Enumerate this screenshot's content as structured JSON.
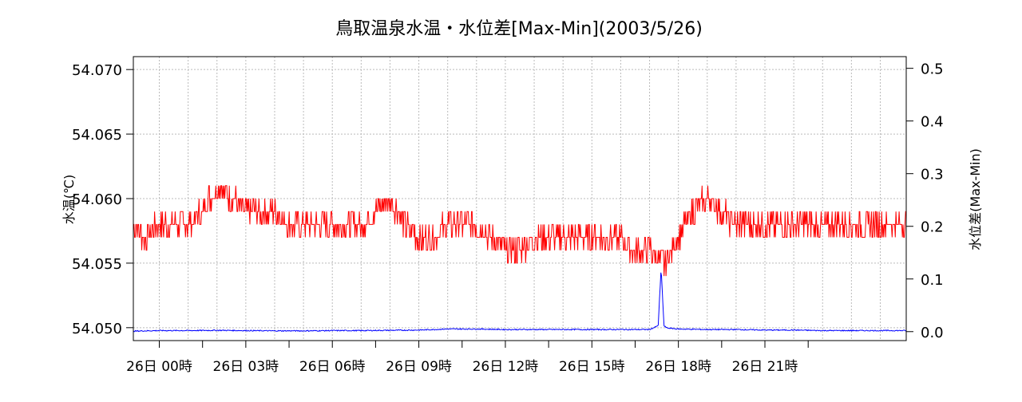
{
  "chart_data": {
    "type": "line",
    "title": "鳥取温泉水温・水位差[Max-Min](2003/5/26)",
    "ylabel_left": "水温(℃)",
    "ylabel_right": "水位差(Max-Min)",
    "ylim_left": [
      54.049,
      54.071
    ],
    "ylim_right": [
      -0.017,
      0.5222
    ],
    "yticks_left": [
      "54.050",
      "54.055",
      "54.060",
      "54.065",
      "54.070"
    ],
    "yticks_left_values": [
      54.05,
      54.055,
      54.06,
      54.065,
      54.07
    ],
    "yticks_right": [
      "0.0",
      "0.1",
      "0.2",
      "0.3",
      "0.4",
      "0.5"
    ],
    "yticks_right_values": [
      0.0,
      0.1,
      0.2,
      0.3,
      0.4,
      0.5
    ],
    "xlim": [
      -0.9,
      25.9
    ],
    "xticks": [
      {
        "x": 0,
        "label": "26日 00時"
      },
      {
        "x": 3,
        "label": "26日 03時"
      },
      {
        "x": 6,
        "label": "26日 06時"
      },
      {
        "x": 9,
        "label": "26日 09時"
      },
      {
        "x": 12,
        "label": "26日 12時"
      },
      {
        "x": 15,
        "label": "26日 15時"
      },
      {
        "x": 18,
        "label": "26日 18時"
      },
      {
        "x": 21,
        "label": "26日 21時"
      }
    ],
    "grid": true,
    "series": [
      {
        "axis": "left",
        "color": "#ff0000",
        "x": [
          -0.9,
          -0.5,
          0,
          0.5,
          1,
          1.5,
          2,
          2.5,
          3,
          3.5,
          4,
          4.5,
          5,
          5.5,
          6,
          6.5,
          7,
          7.5,
          8,
          8.5,
          9,
          9.5,
          10,
          10.5,
          11,
          11.5,
          12,
          12.5,
          13,
          13.5,
          14,
          14.5,
          15,
          15.5,
          16,
          16.5,
          17,
          17.5,
          18,
          18.5,
          19,
          19.5,
          20,
          20.5,
          21,
          21.5,
          22,
          22.5,
          23,
          23.5,
          24,
          24.5,
          25,
          25.5,
          25.9
        ],
        "y": [
          54.058,
          54.057,
          54.058,
          54.058,
          54.058,
          54.059,
          54.061,
          54.06,
          54.059,
          54.059,
          54.059,
          54.058,
          54.058,
          54.058,
          54.058,
          54.058,
          54.058,
          54.059,
          54.06,
          54.058,
          54.057,
          54.057,
          54.058,
          54.058,
          54.058,
          54.057,
          54.056,
          54.056,
          54.057,
          54.057,
          54.057,
          54.057,
          54.057,
          54.057,
          54.057,
          54.056,
          54.056,
          54.055,
          54.057,
          54.059,
          54.06,
          54.059,
          54.058,
          54.058,
          54.058,
          54.058,
          54.058,
          54.058,
          54.058,
          54.058,
          54.058,
          54.058,
          54.058,
          54.058,
          54.058
        ],
        "noise": 0.001,
        "min": 54.053,
        "max": 54.062
      },
      {
        "axis": "right",
        "color": "#0000ff",
        "x": [
          -0.9,
          0,
          1,
          2,
          3,
          4,
          5,
          6,
          7,
          8,
          9,
          10,
          11,
          12,
          13,
          14,
          15,
          16,
          17,
          17.3,
          17.4,
          17.5,
          17.6,
          18,
          19,
          20,
          21,
          22,
          23,
          24,
          25,
          25.9
        ],
        "y": [
          0.0,
          0.001,
          0.001,
          0.0015,
          0.001,
          0.0005,
          0.0005,
          0.001,
          0.001,
          0.0015,
          0.002,
          0.004,
          0.004,
          0.003,
          0.003,
          0.003,
          0.003,
          0.003,
          0.003,
          0.01,
          0.12,
          0.01,
          0.006,
          0.004,
          0.003,
          0.003,
          0.002,
          0.002,
          0.001,
          0.001,
          0.001,
          0.001
        ],
        "noise": 0.002,
        "min": 0.0,
        "max": 0.12
      }
    ]
  }
}
